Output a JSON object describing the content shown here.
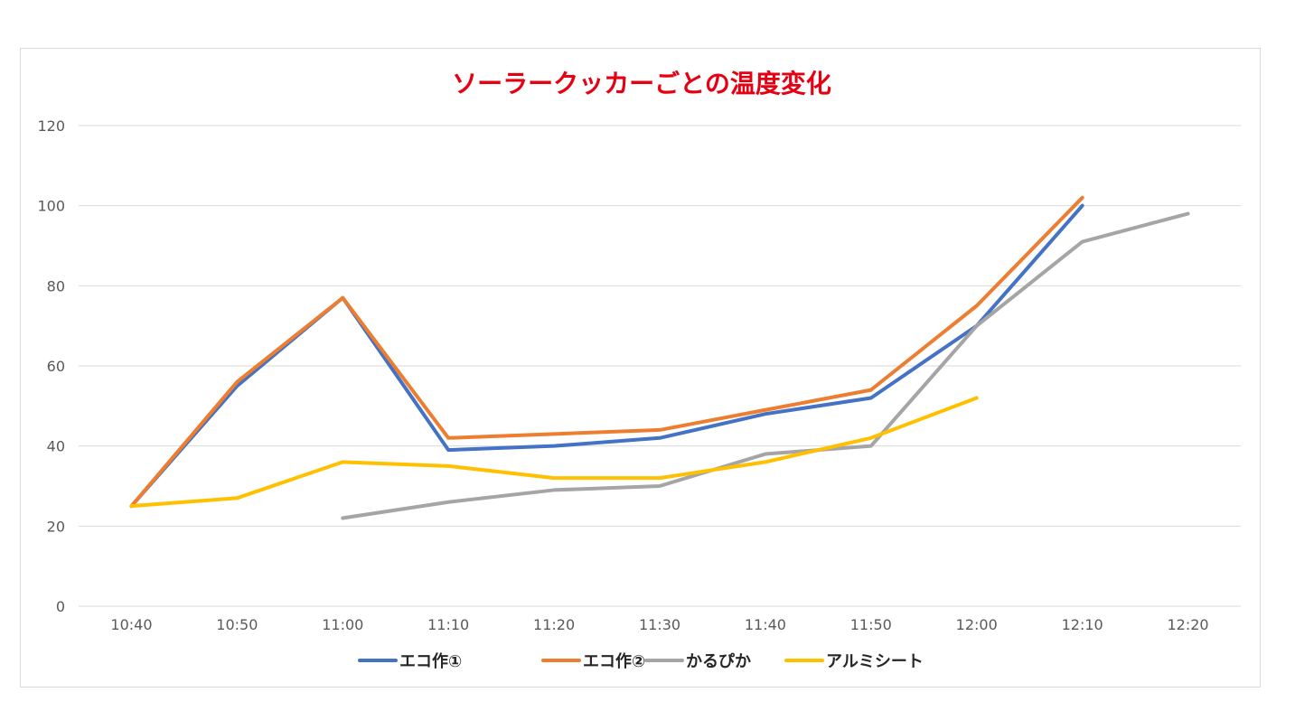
{
  "chart_data": {
    "type": "line",
    "title": "ソーラークッカーごとの温度変化",
    "title_color": "#e60012",
    "categories": [
      "10:40",
      "10:50",
      "11:00",
      "11:10",
      "11:20",
      "11:30",
      "11:40",
      "11:50",
      "12:00",
      "12:10",
      "12:20"
    ],
    "ylim": [
      0,
      120
    ],
    "yticks": [
      0,
      20,
      40,
      60,
      80,
      100,
      120
    ],
    "grid": true,
    "legend_position": "bottom",
    "series": [
      {
        "name": "エコ作①",
        "color": "#4472c4",
        "values": [
          25,
          55,
          77,
          39,
          40,
          42,
          48,
          52,
          70,
          100,
          null
        ]
      },
      {
        "name": "エコ作②",
        "color": "#ed7d31",
        "values": [
          25,
          56,
          77,
          42,
          43,
          44,
          49,
          54,
          75,
          102,
          null
        ]
      },
      {
        "name": "かるぴか",
        "color": "#a5a5a5",
        "values": [
          null,
          null,
          22,
          26,
          29,
          30,
          38,
          40,
          70,
          91,
          98
        ]
      },
      {
        "name": "アルミシート",
        "color": "#ffc000",
        "values": [
          25,
          27,
          36,
          35,
          32,
          32,
          36,
          42,
          52,
          null,
          null
        ]
      }
    ]
  }
}
